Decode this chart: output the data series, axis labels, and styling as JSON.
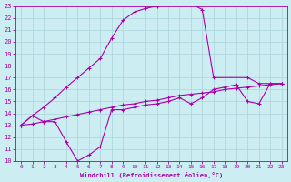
{
  "xlabel": "Windchill (Refroidissement éolien,°C)",
  "xlim": [
    -0.5,
    23.5
  ],
  "ylim": [
    10,
    23
  ],
  "xticks": [
    0,
    1,
    2,
    3,
    4,
    5,
    6,
    7,
    8,
    9,
    10,
    11,
    12,
    13,
    14,
    15,
    16,
    17,
    18,
    19,
    20,
    21,
    22,
    23
  ],
  "yticks": [
    10,
    11,
    12,
    13,
    14,
    15,
    16,
    17,
    18,
    19,
    20,
    21,
    22,
    23
  ],
  "bg_color": "#cceef2",
  "grid_color": "#aad4dc",
  "line_color": "#aa00aa",
  "line1_x": [
    0,
    1,
    2,
    3,
    4,
    5,
    6,
    7,
    8,
    9,
    10,
    11,
    12,
    13,
    14,
    15,
    16,
    17,
    20,
    21,
    22,
    23
  ],
  "line1_y": [
    13,
    13.8,
    14.5,
    15.3,
    16.2,
    17.0,
    17.8,
    18.6,
    20.3,
    21.8,
    22.5,
    22.8,
    23.0,
    23.2,
    23.3,
    23.2,
    22.7,
    17.0,
    17.0,
    16.5,
    16.5,
    16.5
  ],
  "line2_x": [
    0,
    1,
    2,
    3,
    4,
    5,
    6,
    7,
    8,
    9,
    10,
    11,
    12,
    13,
    14,
    15,
    16,
    17,
    18,
    19,
    20,
    21,
    22,
    23
  ],
  "line2_y": [
    13.0,
    13.1,
    13.3,
    13.5,
    13.7,
    13.9,
    14.1,
    14.3,
    14.5,
    14.7,
    14.8,
    15.0,
    15.1,
    15.3,
    15.5,
    15.6,
    15.7,
    15.8,
    16.0,
    16.1,
    16.2,
    16.3,
    16.4,
    16.5
  ],
  "line3_x": [
    0,
    1,
    2,
    3,
    4,
    5,
    6,
    7,
    8,
    9,
    10,
    11,
    12,
    13,
    14,
    15,
    16,
    17,
    18,
    19,
    20,
    21,
    22,
    23
  ],
  "line3_y": [
    13.0,
    13.8,
    13.3,
    13.3,
    11.6,
    10.0,
    10.5,
    11.2,
    14.3,
    14.3,
    14.5,
    14.7,
    14.8,
    15.0,
    15.3,
    14.8,
    15.3,
    16.0,
    16.2,
    16.4,
    15.0,
    14.8,
    16.5,
    16.5
  ]
}
